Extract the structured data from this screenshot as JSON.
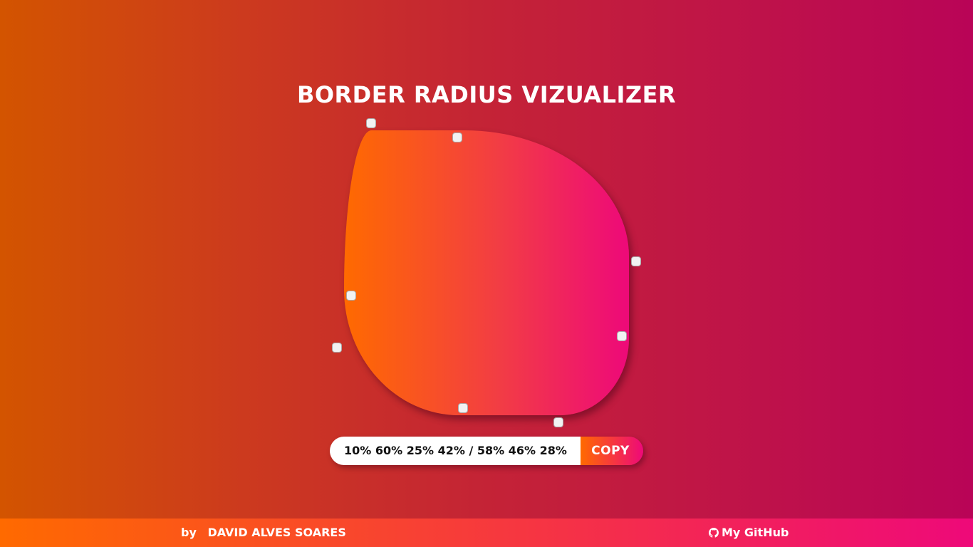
{
  "page": {
    "title": "BORDER RADIUS VIZUALIZER"
  },
  "border_radius": {
    "horizontal": [
      "10%",
      "60%",
      "25%",
      "42%"
    ],
    "vertical": [
      "58%",
      "46%",
      "28%"
    ]
  },
  "output": {
    "css_value": "10% 60% 25% 42% / 58% 46% 28%",
    "copy_label": "COPY"
  },
  "footer": {
    "by_label": "by",
    "author": "DAVID ALVES SOARES",
    "github_label": "My GitHub",
    "github_icon": "github-icon"
  },
  "colors": {
    "background_start": "#d35400",
    "background_end": "#b90457",
    "accent_start": "#ff6a00",
    "accent_end": "#ee0979",
    "text": "#ffffff"
  }
}
